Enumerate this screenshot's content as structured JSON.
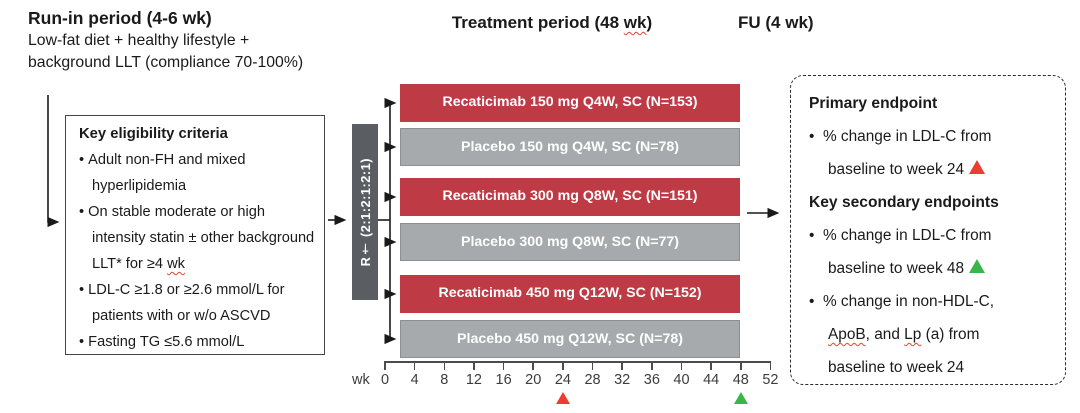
{
  "palette": {
    "treatment_bar": "#be3a45",
    "placebo_bar": "#a7aaac",
    "randomization_bar": "#5a5e62",
    "red_triangle": "#ee3b33",
    "green_triangle": "#3ab54a",
    "squiggle": "#e0482e"
  },
  "run_in": {
    "title": "Run-in period (4-6 wk)",
    "line1": "Low-fat diet + healthy lifestyle +",
    "line2": "background LLT (compliance 70-100%)"
  },
  "headers": {
    "treatment": "Treatment period (48 [[wk]])",
    "follow_up": "FU (4 wk)"
  },
  "eligibility": {
    "title": "Key eligibility criteria",
    "bullets": [
      "Adult non-FH and mixed hyperlipidemia",
      "On stable moderate or high intensity statin ± other background LLT* for ≥4 [[wk]]",
      "LDL-C ≥1.8 or ≥2.6 mmol/L for patients with or w/o ASCVD",
      "Fasting TG ≤5.6 mmol/L"
    ]
  },
  "randomization": {
    "label": "R† (2:1:2:1:2:1)"
  },
  "arms": [
    {
      "label": "Recaticimab 150 mg Q4W, SC (N=153)",
      "type": "treatment"
    },
    {
      "label": "Placebo 150 mg Q4W, SC (N=78)",
      "type": "placebo"
    },
    {
      "label": "Recaticimab 300 mg Q8W, SC (N=151)",
      "type": "treatment"
    },
    {
      "label": "Placebo 300 mg Q8W, SC (N=77)",
      "type": "placebo"
    },
    {
      "label": "Recaticimab 450 mg Q12W, SC (N=152)",
      "type": "treatment"
    },
    {
      "label": "Placebo 450 mg Q12W, SC (N=78)",
      "type": "placebo"
    }
  ],
  "timeline": {
    "unit_label": "wk",
    "ticks": [
      0,
      4,
      8,
      12,
      16,
      20,
      24,
      28,
      32,
      36,
      40,
      44,
      48,
      52
    ],
    "primary_marker_week": 24,
    "secondary_marker_week": 48
  },
  "endpoints": {
    "primary_heading": "Primary endpoint",
    "primary_bullet": "% change in LDL-C from baseline to week 24",
    "secondary_heading": "Key secondary endpoints",
    "secondary_bullet_1": "% change in LDL-C from baseline to week 48",
    "secondary_bullet_2": "% change in non-HDL-C, [[ApoB]], and [[Lp]] (a) from baseline to week 24"
  }
}
